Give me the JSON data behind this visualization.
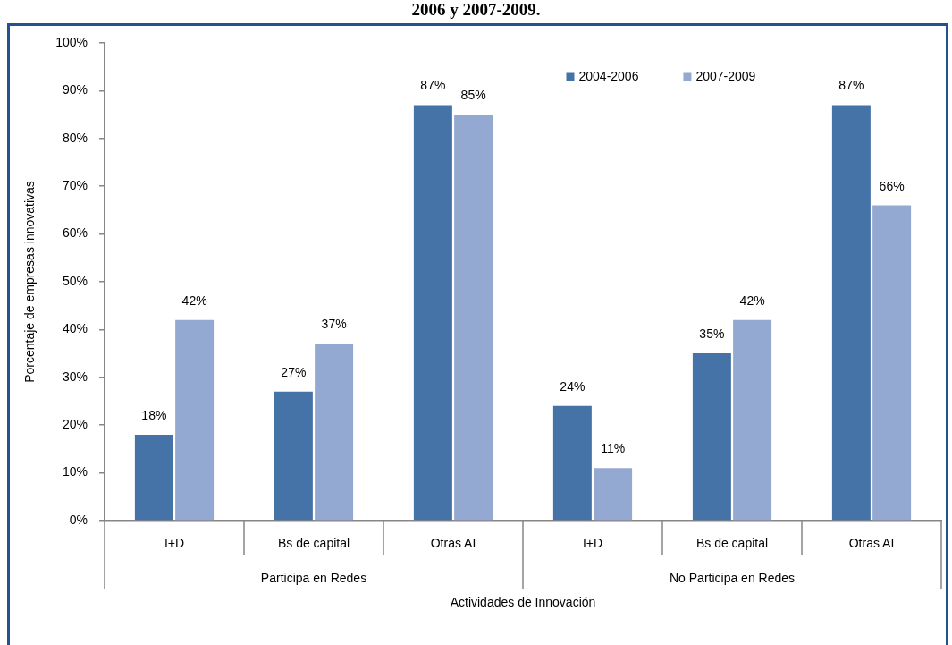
{
  "chart_data": {
    "type": "bar",
    "title": "2006 y 2007-2009.",
    "xlabel": "Actividades de Innovación",
    "ylabel": "Porcentaje de empresas innovativas",
    "categories": [
      "I+D",
      "Bs de capital",
      "Otras AI",
      "I+D",
      "Bs de capital",
      "Otras AI"
    ],
    "series": [
      {
        "name": "2004-2006",
        "color": "#4572a7",
        "values": [
          18,
          27,
          87,
          24,
          35,
          87
        ],
        "value_labels": [
          "18%",
          "27%",
          "87%",
          "24%",
          "35%",
          "87%"
        ]
      },
      {
        "name": "2007-2009",
        "color": "#94a9d1",
        "values": [
          42,
          37,
          85,
          11,
          42,
          66
        ],
        "value_labels": [
          "42%",
          "37%",
          "85%",
          "11%",
          "42%",
          "66%"
        ]
      }
    ],
    "ylim": [
      0,
      100
    ],
    "yticks": [
      {
        "value": 0,
        "label": "0%"
      },
      {
        "value": 10,
        "label": "10%"
      },
      {
        "value": 20,
        "label": "20%"
      },
      {
        "value": 30,
        "label": "30%"
      },
      {
        "value": 40,
        "label": "40%"
      },
      {
        "value": 50,
        "label": "50%"
      },
      {
        "value": 60,
        "label": "60%"
      },
      {
        "value": 70,
        "label": "70%"
      },
      {
        "value": 80,
        "label": "80%"
      },
      {
        "value": 90,
        "label": "90%"
      },
      {
        "value": 100,
        "label": "100%"
      }
    ],
    "annotations": [
      "Participa en Redes",
      "No Participa en Redes"
    ],
    "legend": "top",
    "grid": false
  }
}
